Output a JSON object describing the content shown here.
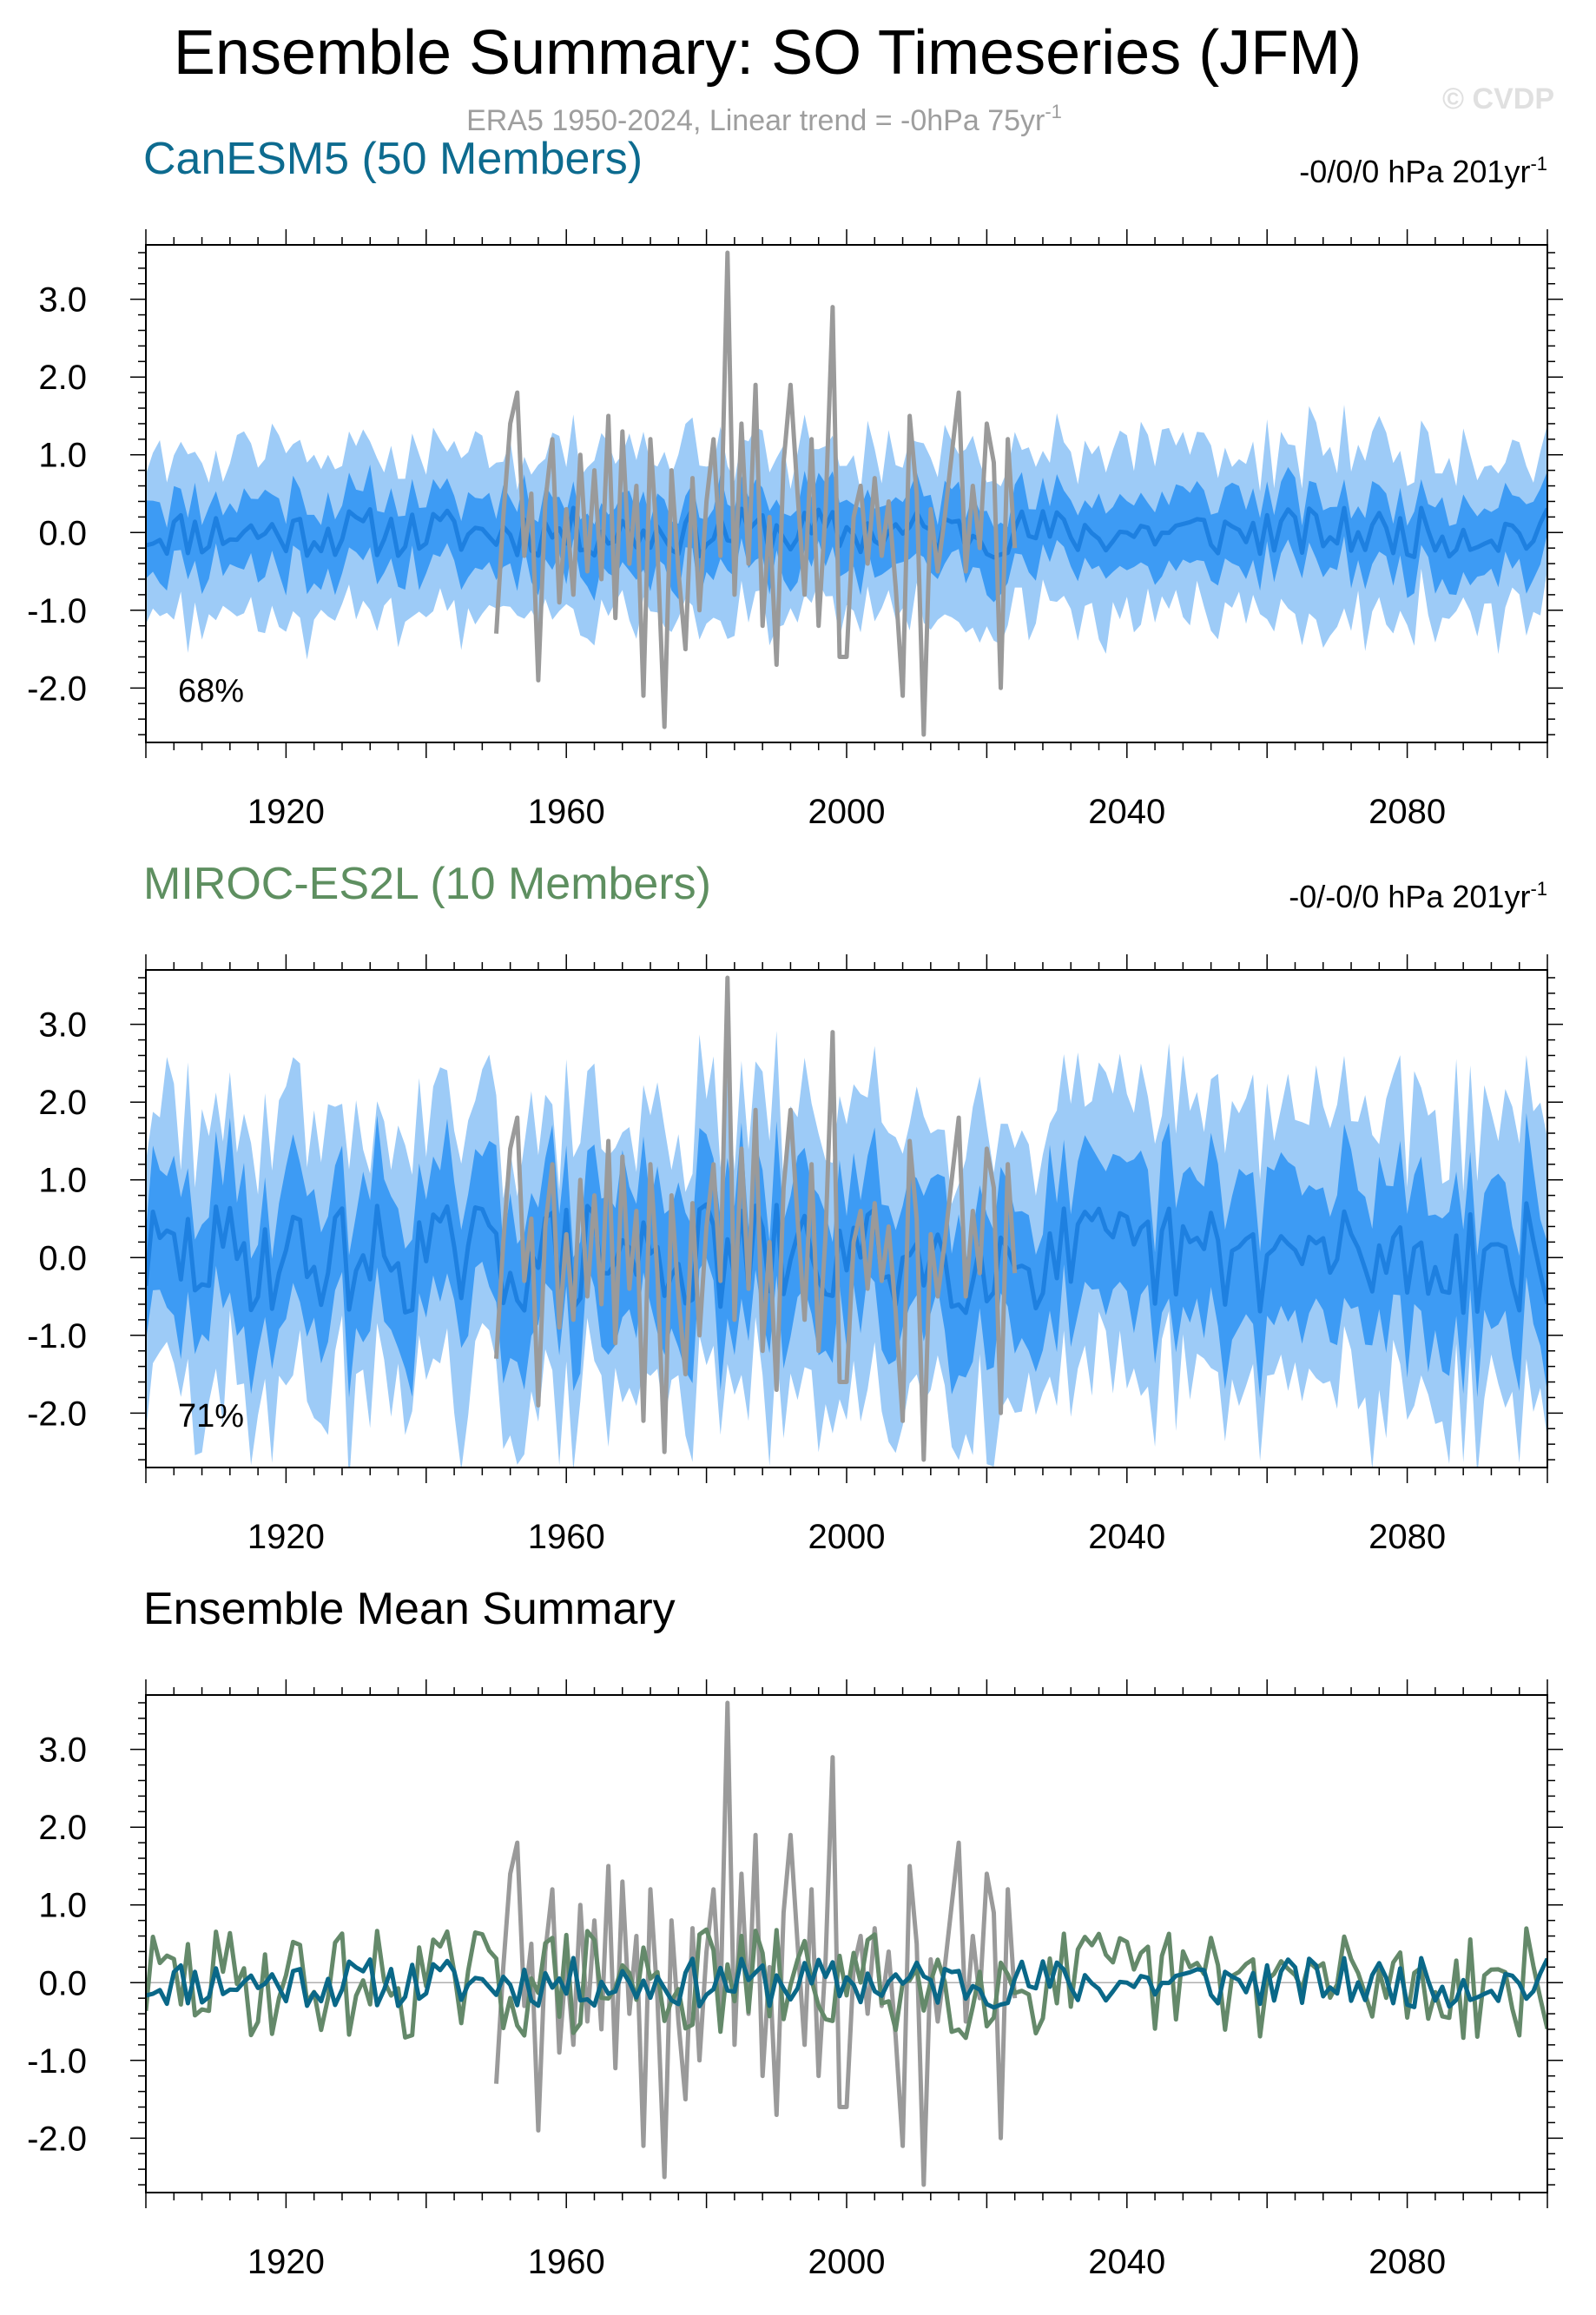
{
  "title": "Ensemble Summary: SO Timeseries (JFM)",
  "subtitle": "ERA5 1950-2024, Linear trend = -0hPa 75yr",
  "subtitle_sup": "-1",
  "watermark": "© CVDP",
  "colors": {
    "canesm_title": "#0d6b8f",
    "miroc_title": "#5e8f60",
    "band_outer": "#9dcbf7",
    "band_inner": "#3d9bf4",
    "ens_mean": "#1e80e0",
    "obs": "#9a9a9a",
    "canesm_mean": "#0a6888",
    "miroc_mean": "#64896a"
  },
  "chart_data": [
    {
      "type": "area",
      "title": "CanESM5 (50 Members)",
      "trend_label": "-0/0/0 hPa 201yr",
      "trend_sup": "-1",
      "percent_label": "68%",
      "xlim": [
        1900,
        2100
      ],
      "ylim": [
        -2.7,
        3.7
      ],
      "x_ticks": [
        1920,
        1960,
        2000,
        2040,
        2080
      ],
      "y_ticks": [
        3.0,
        2.0,
        1.0,
        0.0,
        -1.0,
        -2.0
      ],
      "series": [
        {
          "role": "band-outer",
          "note": "members 10-90% range",
          "amp_lo": 1.0,
          "amp_hi": 1.0
        },
        {
          "role": "band-inner",
          "note": "members 25-75% range",
          "amp": 0.45
        },
        {
          "role": "ensemble-mean",
          "x_start": 1900,
          "x_end": 2100
        },
        {
          "role": "observations",
          "x_start": 1950,
          "x_end": 2024
        }
      ]
    },
    {
      "type": "area",
      "title": "MIROC-ES2L (10 Members)",
      "trend_label": "-0/-0/0 hPa 201yr",
      "trend_sup": "-1",
      "percent_label": "71%",
      "xlim": [
        1900,
        2100
      ],
      "ylim": [
        -2.7,
        3.7
      ],
      "x_ticks": [
        1920,
        1960,
        2000,
        2040,
        2080
      ],
      "y_ticks": [
        3.0,
        2.0,
        1.0,
        0.0,
        -1.0,
        -2.0
      ],
      "series": [
        {
          "role": "band-outer",
          "amp_lo": 1.7,
          "amp_hi": 1.7
        },
        {
          "role": "band-inner",
          "amp": 0.9
        },
        {
          "role": "ensemble-mean",
          "x_start": 1900,
          "x_end": 2100
        },
        {
          "role": "observations",
          "x_start": 1950,
          "x_end": 2024
        }
      ]
    },
    {
      "type": "line",
      "title": "Ensemble Mean Summary",
      "xlim": [
        1900,
        2100
      ],
      "ylim": [
        -2.7,
        3.7
      ],
      "x_ticks": [
        1920,
        1960,
        2000,
        2040,
        2080
      ],
      "y_ticks": [
        3.0,
        2.0,
        1.0,
        0.0,
        -1.0,
        -2.0
      ],
      "series": [
        {
          "role": "observations",
          "x_start": 1950,
          "x_end": 2024
        },
        {
          "role": "canesm-mean",
          "x_start": 1900,
          "x_end": 2100
        },
        {
          "role": "miroc-mean",
          "x_start": 1900,
          "x_end": 2100
        }
      ]
    }
  ],
  "obs_anomalies": [
    {
      "x": 1950,
      "y": -1.3
    },
    {
      "x": 1951,
      "y": 0.2
    },
    {
      "x": 1952,
      "y": 1.4
    },
    {
      "x": 1953,
      "y": 1.8
    },
    {
      "x": 1954,
      "y": -0.3
    },
    {
      "x": 1955,
      "y": 0.5
    },
    {
      "x": 1956,
      "y": -1.9
    },
    {
      "x": 1957,
      "y": 0.4
    },
    {
      "x": 1958,
      "y": 1.2
    },
    {
      "x": 1959,
      "y": -0.9
    },
    {
      "x": 1960,
      "y": 0.3
    },
    {
      "x": 1961,
      "y": -0.8
    },
    {
      "x": 1962,
      "y": 1.0
    },
    {
      "x": 1963,
      "y": -0.5
    },
    {
      "x": 1964,
      "y": 0.8
    },
    {
      "x": 1965,
      "y": -0.6
    },
    {
      "x": 1966,
      "y": 1.5
    },
    {
      "x": 1967,
      "y": -1.1
    },
    {
      "x": 1968,
      "y": 1.3
    },
    {
      "x": 1969,
      "y": -0.4
    },
    {
      "x": 1970,
      "y": 0.6
    },
    {
      "x": 1971,
      "y": -2.1
    },
    {
      "x": 1972,
      "y": 1.2
    },
    {
      "x": 1973,
      "y": -0.2
    },
    {
      "x": 1974,
      "y": -2.5
    },
    {
      "x": 1975,
      "y": 0.8
    },
    {
      "x": 1976,
      "y": -0.5
    },
    {
      "x": 1977,
      "y": -1.5
    },
    {
      "x": 1978,
      "y": 0.7
    },
    {
      "x": 1979,
      "y": -1.0
    },
    {
      "x": 1980,
      "y": 0.4
    },
    {
      "x": 1981,
      "y": 1.2
    },
    {
      "x": 1982,
      "y": -0.3
    },
    {
      "x": 1983,
      "y": 3.6
    },
    {
      "x": 1984,
      "y": -0.8
    },
    {
      "x": 1985,
      "y": 1.4
    },
    {
      "x": 1986,
      "y": -0.4
    },
    {
      "x": 1987,
      "y": 1.9
    },
    {
      "x": 1988,
      "y": -1.2
    },
    {
      "x": 1989,
      "y": 0.2
    },
    {
      "x": 1990,
      "y": -1.7
    },
    {
      "x": 1991,
      "y": 0.9
    },
    {
      "x": 1992,
      "y": 1.9
    },
    {
      "x": 1993,
      "y": 0.5
    },
    {
      "x": 1994,
      "y": -0.8
    },
    {
      "x": 1995,
      "y": 1.2
    },
    {
      "x": 1996,
      "y": -1.2
    },
    {
      "x": 1997,
      "y": 0.3
    },
    {
      "x": 1998,
      "y": 2.9
    },
    {
      "x": 1999,
      "y": -1.6
    },
    {
      "x": 2000,
      "y": -1.6
    },
    {
      "x": 2001,
      "y": 0.2
    },
    {
      "x": 2002,
      "y": 0.6
    },
    {
      "x": 2003,
      "y": -0.4
    },
    {
      "x": 2004,
      "y": 0.7
    },
    {
      "x": 2005,
      "y": -0.3
    },
    {
      "x": 2006,
      "y": 0.4
    },
    {
      "x": 2007,
      "y": -0.7
    },
    {
      "x": 2008,
      "y": -2.1
    },
    {
      "x": 2009,
      "y": 1.5
    },
    {
      "x": 2010,
      "y": 0.5
    },
    {
      "x": 2011,
      "y": -2.6
    },
    {
      "x": 2012,
      "y": 0.3
    },
    {
      "x": 2013,
      "y": -0.5
    },
    {
      "x": 2014,
      "y": 0.2
    },
    {
      "x": 2015,
      "y": 1.0
    },
    {
      "x": 2016,
      "y": 1.8
    },
    {
      "x": 2017,
      "y": -0.5
    },
    {
      "x": 2018,
      "y": 0.6
    },
    {
      "x": 2019,
      "y": -0.2
    },
    {
      "x": 2020,
      "y": 1.4
    },
    {
      "x": 2021,
      "y": 0.9
    },
    {
      "x": 2022,
      "y": -2.0
    },
    {
      "x": 2023,
      "y": 1.2
    },
    {
      "x": 2024,
      "y": -0.2
    }
  ]
}
